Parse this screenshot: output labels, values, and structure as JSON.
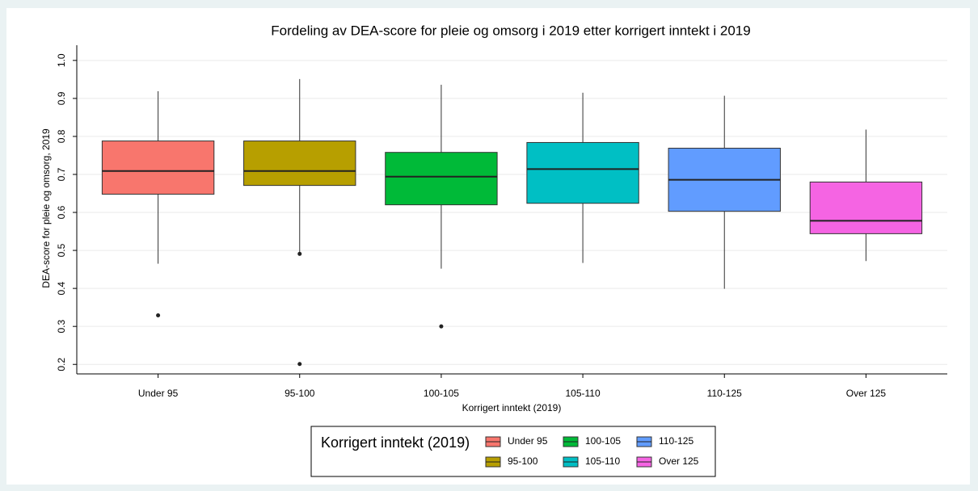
{
  "chart_data": {
    "type": "box",
    "title": "Fordeling av DEA-score for pleie og omsorg i 2019 etter korrigert inntekt i 2019",
    "x_label": "Korrigert inntekt (2019)",
    "y_label": "DEA-score for pleie og omsorg, 2019",
    "categories": [
      "Under 95",
      "95-100",
      "100-105",
      "105-110",
      "110-125",
      "Over 125"
    ],
    "series": [
      {
        "name": "Under 95",
        "color": "#f8766d",
        "min": 0.465,
        "q1": 0.648,
        "median": 0.709,
        "q3": 0.788,
        "max": 0.919,
        "outliers": [
          0.329
        ]
      },
      {
        "name": "95-100",
        "color": "#b79f00",
        "min": 0.495,
        "q1": 0.671,
        "median": 0.709,
        "q3": 0.788,
        "max": 0.951,
        "outliers": [
          0.491,
          0.201
        ]
      },
      {
        "name": "100-105",
        "color": "#00ba38",
        "min": 0.452,
        "q1": 0.62,
        "median": 0.694,
        "q3": 0.758,
        "max": 0.936,
        "outliers": [
          0.3
        ]
      },
      {
        "name": "105-110",
        "color": "#00bfc4",
        "min": 0.467,
        "q1": 0.624,
        "median": 0.714,
        "q3": 0.784,
        "max": 0.915,
        "outliers": []
      },
      {
        "name": "110-125",
        "color": "#619cff",
        "min": 0.399,
        "q1": 0.603,
        "median": 0.686,
        "q3": 0.769,
        "max": 0.907,
        "outliers": []
      },
      {
        "name": "Over 125",
        "color": "#f564e3",
        "min": 0.472,
        "q1": 0.544,
        "median": 0.578,
        "q3": 0.68,
        "max": 0.818,
        "outliers": []
      }
    ],
    "legend_title": "Korrigert inntekt (2019)",
    "ylim": [
      0.175,
      1.04
    ],
    "yticks": [
      0.2,
      0.3,
      0.4,
      0.5,
      0.6,
      0.7,
      0.8,
      0.9,
      {
        "value": 1,
        "label": "1.0"
      }
    ],
    "grid": true
  }
}
